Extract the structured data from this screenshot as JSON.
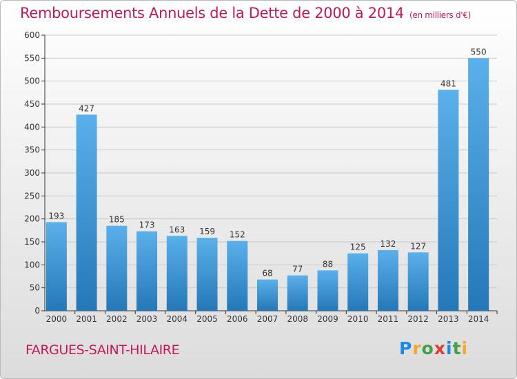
{
  "chart_data": {
    "type": "bar",
    "title": "Remboursements Annuels de la Dette de 2000 à 2014",
    "unit_note": "(en milliers d'€)",
    "categories": [
      "2000",
      "2001",
      "2002",
      "2003",
      "2004",
      "2005",
      "2006",
      "2007",
      "2008",
      "2009",
      "2010",
      "2011",
      "2012",
      "2013",
      "2014"
    ],
    "values": [
      193,
      427,
      185,
      173,
      163,
      159,
      152,
      68,
      77,
      88,
      125,
      132,
      127,
      481,
      550
    ],
    "ylim": [
      0,
      600
    ],
    "yticks": [
      0,
      50,
      100,
      150,
      200,
      250,
      300,
      350,
      400,
      450,
      500,
      550,
      600
    ],
    "xlabel": "",
    "ylabel": "",
    "grid": true
  },
  "commune": "FARGUES-SAINT-HILAIRE",
  "brand": {
    "letters": [
      "P",
      "r",
      "o",
      "x",
      "i",
      "t",
      "i"
    ],
    "colors": [
      "#1e88e5",
      "#f9a825",
      "#43a047",
      "#e53935",
      "#1e88e5",
      "#43a047",
      "#f9a825"
    ]
  },
  "colors": {
    "bar_top": "#5ab0ea",
    "bar_bottom": "#2478b8",
    "grid": "#c8c8c8",
    "axis": "#333333",
    "title": "#c2185b"
  }
}
